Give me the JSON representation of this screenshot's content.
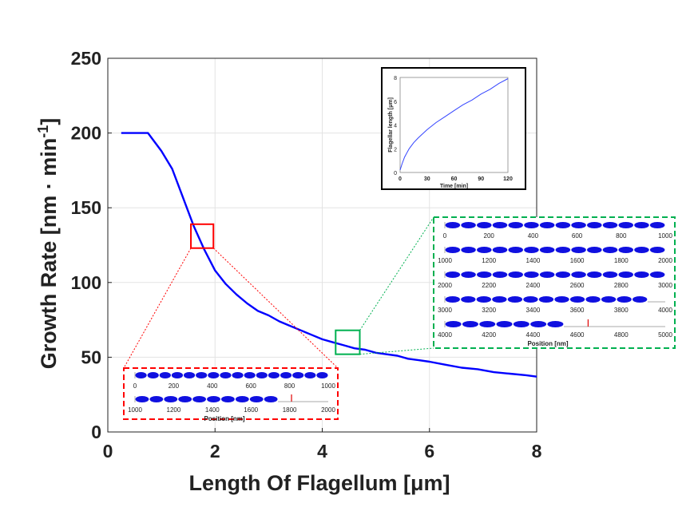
{
  "chart_data": {
    "type": "line",
    "xlabel": "Length Of Flagellum [μm]",
    "ylabel": "Growth Rate [nm · min",
    "ylabel_sup": "-1",
    "xlim": [
      0,
      8
    ],
    "ylim": [
      0,
      250
    ],
    "x_ticks": [
      "0",
      "2",
      "4",
      "6",
      "8"
    ],
    "y_ticks": [
      "0",
      "50",
      "100",
      "150",
      "200",
      "250"
    ],
    "grid": true,
    "series": [
      {
        "name": "growth rate",
        "color": "#0000ff",
        "x": [
          0.25,
          0.75,
          1.0,
          1.2,
          1.4,
          1.6,
          1.8,
          2.0,
          2.2,
          2.4,
          2.6,
          2.8,
          3.0,
          3.2,
          3.4,
          3.6,
          3.8,
          4.0,
          4.2,
          4.4,
          4.6,
          4.8,
          5.0,
          5.2,
          5.4,
          5.6,
          5.8,
          6.0,
          6.3,
          6.6,
          6.9,
          7.2,
          7.5,
          7.8,
          8.0
        ],
        "y": [
          200,
          200,
          188,
          176,
          157,
          138,
          122,
          108,
          99,
          92,
          86,
          81,
          78,
          74,
          71,
          68,
          65,
          62,
          60,
          58,
          56,
          55,
          53,
          52,
          51,
          49,
          48,
          47,
          45,
          43,
          42,
          40,
          39,
          38,
          37
        ]
      }
    ],
    "highlights": [
      {
        "color": "#ff0000",
        "x_range": [
          1.55,
          1.97
        ],
        "y_range": [
          123,
          139
        ]
      },
      {
        "color": "#00b050",
        "x_range": [
          4.25,
          4.7
        ],
        "y_range": [
          52,
          68
        ]
      }
    ],
    "inset_time": {
      "type": "line",
      "xlabel": "Time [min]",
      "ylabel": "Flagellar length [μm]",
      "xlim": [
        0,
        120
      ],
      "ylim": [
        0,
        8
      ],
      "x_ticks": [
        "0",
        "30",
        "60",
        "90",
        "120"
      ],
      "y_ticks": [
        "0",
        "2",
        "4",
        "6",
        "8"
      ],
      "color": "#3344ff",
      "x": [
        0,
        2,
        5,
        10,
        15,
        20,
        30,
        40,
        50,
        60,
        70,
        80,
        90,
        100,
        110,
        120
      ],
      "y": [
        0.2,
        0.7,
        1.3,
        2.0,
        2.5,
        2.9,
        3.6,
        4.2,
        4.7,
        5.2,
        5.7,
        6.1,
        6.6,
        7.0,
        7.5,
        7.9
      ]
    },
    "inset_red": {
      "xlabel": "Position [nm]",
      "rows": [
        {
          "range": [
            0,
            1000
          ],
          "ticks": [
            "0",
            "200",
            "400",
            "600",
            "800",
            "1000"
          ],
          "fill_end": 1000,
          "ellipses": 16
        },
        {
          "range": [
            1000,
            2000
          ],
          "ticks": [
            "1000",
            "1200",
            "1400",
            "1600",
            "1800",
            "2000"
          ],
          "fill_end": 1740,
          "ellipses": 10,
          "marker": 1810
        }
      ]
    },
    "inset_green": {
      "xlabel": "Position [nm]",
      "rows": [
        {
          "range": [
            0,
            1000
          ],
          "ticks": [
            "0",
            "200",
            "400",
            "600",
            "800",
            "1000"
          ],
          "fill_end": 1000,
          "ellipses": 14
        },
        {
          "range": [
            1000,
            2000
          ],
          "ticks": [
            "1000",
            "1200",
            "1400",
            "1600",
            "1800",
            "2000"
          ],
          "fill_end": 2000,
          "ellipses": 14
        },
        {
          "range": [
            2000,
            3000
          ],
          "ticks": [
            "2000",
            "2200",
            "2400",
            "2600",
            "2800",
            "3000"
          ],
          "fill_end": 3000,
          "ellipses": 14
        },
        {
          "range": [
            3000,
            4000
          ],
          "ticks": [
            "3000",
            "3200",
            "3400",
            "3600",
            "3800",
            "4000"
          ],
          "fill_end": 3920,
          "ellipses": 13
        },
        {
          "range": [
            4000,
            5000
          ],
          "ticks": [
            "4000",
            "4200",
            "4400",
            "4600",
            "4800",
            "5000"
          ],
          "fill_end": 4540,
          "ellipses": 7,
          "marker": 4650
        }
      ]
    }
  }
}
